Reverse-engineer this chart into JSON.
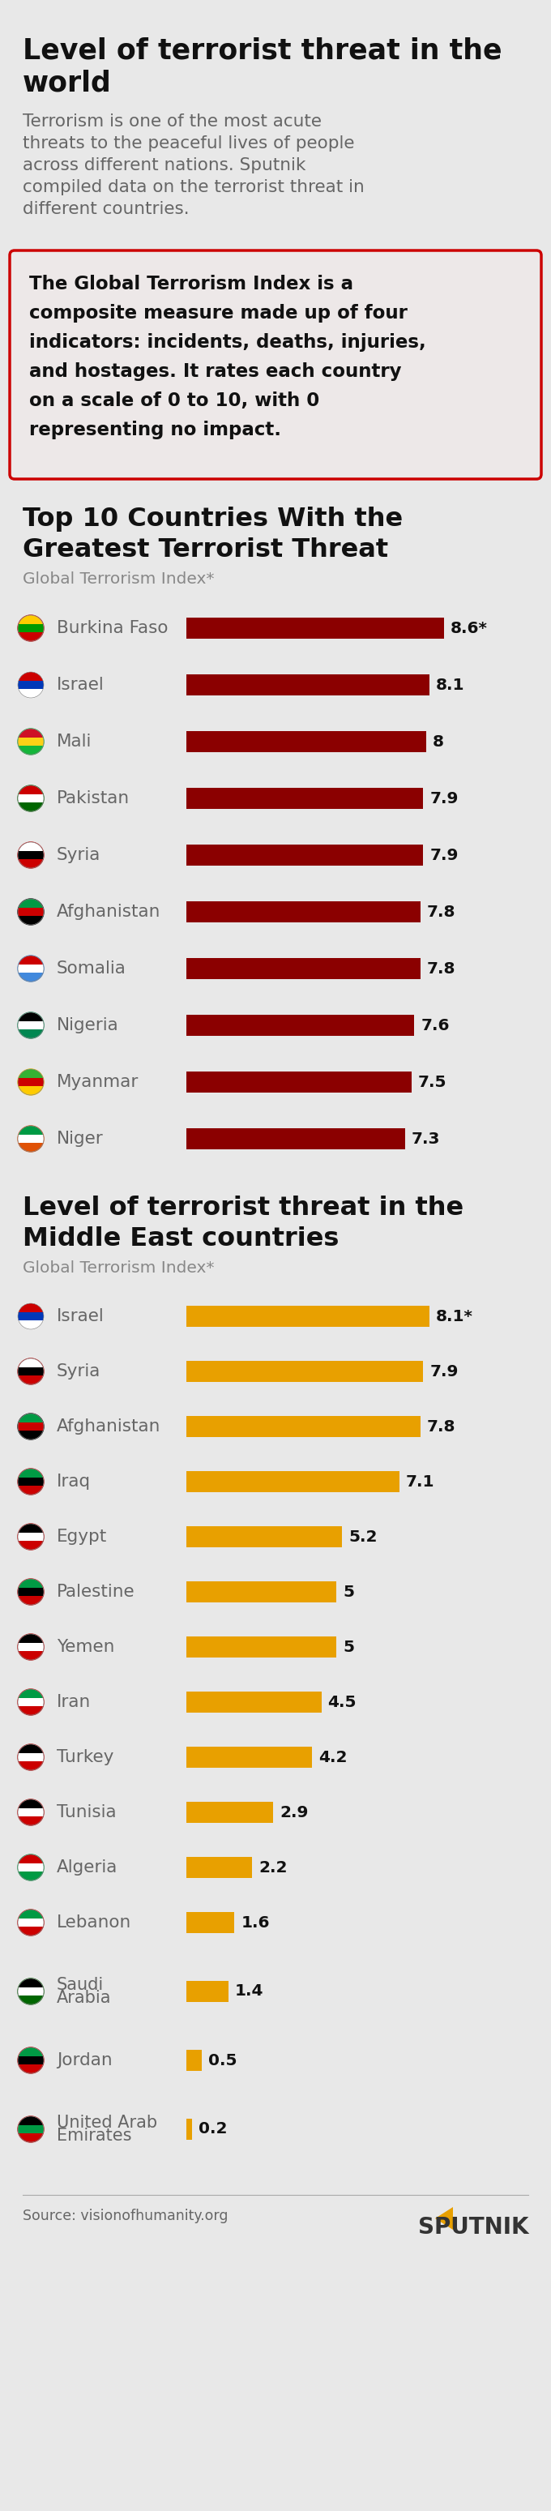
{
  "title_line1": "Level of terrorist threat in the",
  "title_line2": "world",
  "subtitle_lines": [
    "Terrorism is one of the most acute",
    "threats to the peaceful lives of people",
    "across different nations. Sputnik",
    "compiled data on the terrorist threat in",
    "different countries."
  ],
  "info_box_lines": [
    "The Global Terrorism Index is a",
    "composite measure made up of four",
    "indicators: incidents, deaths, injuries,",
    "and hostages. It rates each country",
    "on a scale of 0 to 10, with 0",
    "representing no impact."
  ],
  "section1_title_line1": "Top 10 Countries With the",
  "section1_title_line2": "Greatest Terrorist Threat",
  "section1_subtitle": "Global Terrorism Index*",
  "section2_title_line1": "Level of terrorist threat in the",
  "section2_title_line2": "Middle East countries",
  "section2_subtitle": "Global Terrorism Index*",
  "source": "Source: visionofhumanity.org",
  "bg_color": "#e8e8e8",
  "bar_color_red": "#8b0000",
  "bar_color_orange": "#e8a000",
  "countries1": [
    "Burkina Faso",
    "Israel",
    "Mali",
    "Pakistan",
    "Syria",
    "Afghanistan",
    "Somalia",
    "Nigeria",
    "Myanmar",
    "Niger"
  ],
  "values1": [
    8.6,
    8.1,
    8.0,
    7.9,
    7.9,
    7.8,
    7.8,
    7.6,
    7.5,
    7.3
  ],
  "labels1": [
    "8.6*",
    "8.1",
    "8",
    "7.9",
    "7.9",
    "7.8",
    "7.8",
    "7.6",
    "7.5",
    "7.3"
  ],
  "countries2": [
    "Israel",
    "Syria",
    "Afghanistan",
    "Iraq",
    "Egypt",
    "Palestine",
    "Yemen",
    "Iran",
    "Turkey",
    "Tunisia",
    "Algeria",
    "Lebanon",
    "Saudi\nArabia",
    "Jordan",
    "United Arab\nEmirates"
  ],
  "values2": [
    8.1,
    7.9,
    7.8,
    7.1,
    5.2,
    5.0,
    5.0,
    4.5,
    4.2,
    2.9,
    2.2,
    1.6,
    1.4,
    0.5,
    0.2
  ],
  "labels2": [
    "8.1*",
    "7.9",
    "7.8",
    "7.1",
    "5.2",
    "5",
    "5",
    "4.5",
    "4.2",
    "2.9",
    "2.2",
    "1.6",
    "1.4",
    "0.5",
    "0.2"
  ],
  "max_val": 10.0,
  "flag_colors1": [
    [
      "#cc0000",
      "#009a00",
      "#ffcc00"
    ],
    [
      "#ffffff",
      "#0038b8",
      "#cc0000"
    ],
    [
      "#14b53a",
      "#fcd116",
      "#ce1126"
    ],
    [
      "#006600",
      "#ffffff",
      "#cc0000"
    ],
    [
      "#cc0000",
      "#000000",
      "#ffffff"
    ],
    [
      "#000000",
      "#cc0000",
      "#009a44"
    ],
    [
      "#4189dd",
      "#ffffff",
      "#cc0000"
    ],
    [
      "#008751",
      "#ffffff",
      "#000000"
    ],
    [
      "#fecb00",
      "#cc0000",
      "#34b233"
    ],
    [
      "#e05206",
      "#ffffff",
      "#009a44"
    ]
  ],
  "flag_colors2": [
    [
      "#ffffff",
      "#0038b8",
      "#cc0000"
    ],
    [
      "#cc0000",
      "#000000",
      "#ffffff"
    ],
    [
      "#000000",
      "#cc0000",
      "#009a44"
    ],
    [
      "#cc0000",
      "#000000",
      "#009a44"
    ],
    [
      "#cc0000",
      "#ffffff",
      "#000000"
    ],
    [
      "#cc0000",
      "#000000",
      "#009a44"
    ],
    [
      "#cc0000",
      "#ffffff",
      "#000000"
    ],
    [
      "#cc0000",
      "#ffffff",
      "#009a44"
    ],
    [
      "#cc0000",
      "#ffffff",
      "#000000"
    ],
    [
      "#cc0000",
      "#ffffff",
      "#000000"
    ],
    [
      "#009a44",
      "#ffffff",
      "#cc0000"
    ],
    [
      "#cc0000",
      "#ffffff",
      "#009a44"
    ],
    [
      "#006600",
      "#ffffff",
      "#000000"
    ],
    [
      "#cc0000",
      "#000000",
      "#009a44"
    ],
    [
      "#cc0000",
      "#009a44",
      "#000000"
    ]
  ]
}
